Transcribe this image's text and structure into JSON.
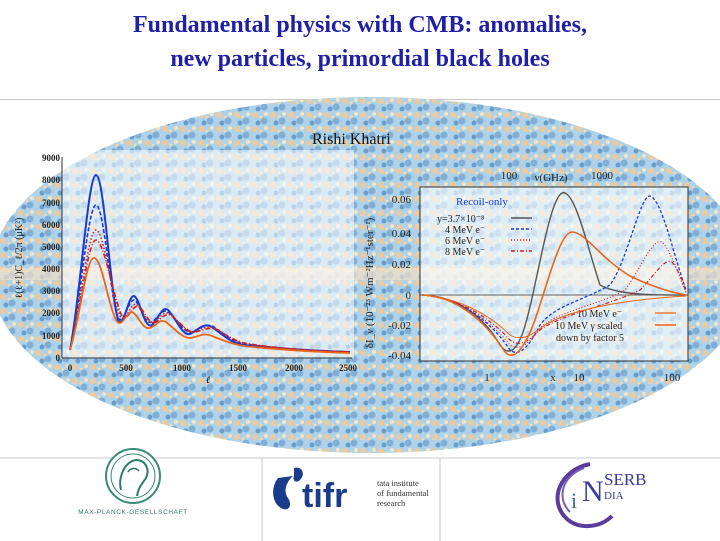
{
  "slide": {
    "title_line1": "Fundamental physics with CMB: anomalies,",
    "title_line2": "new particles, primordial black holes",
    "author": "Rishi Khatri"
  },
  "colors": {
    "title": "#1f1fa8",
    "curve_black": "#555555",
    "curve_blue": "#1a3ad1",
    "curve_orange": "#e8651c",
    "curve_red": "#cc2222",
    "map_blue": "#5ba3d0",
    "map_orange": "#e0b070"
  },
  "left_plot": {
    "ylabel": "ℓ(ℓ+1)C_ℓ/2π (μK²)",
    "xlabel": "ℓ",
    "y_ticks": [
      "9000",
      "8000",
      "7000",
      "6000",
      "5000",
      "4000",
      "3000",
      "2000",
      "1000",
      "0"
    ],
    "x_ticks": [
      "0",
      "500",
      "1000",
      "1500",
      "2000",
      "2500"
    ]
  },
  "right_plot": {
    "top_axis_label": "ν(GHz)",
    "top_ticks": [
      "100",
      "1000"
    ],
    "y_ticks": [
      "0.06",
      "0.04",
      "0.02",
      "0",
      "-0.02",
      "-0.04"
    ],
    "ylabel": "δI_ν (10⁻²³ Wm⁻²Hz⁻¹ster⁻¹)",
    "x_ticks": [
      "1",
      "10",
      "100"
    ],
    "xlabel": "x",
    "legend_title": "Recoil-only",
    "legend1": [
      "y=3.7×10⁻⁸",
      "4 MeV e⁻",
      "6 MeV e⁻",
      "8 MeV e⁻"
    ],
    "legend2": [
      "10 MeV e⁻",
      "10 MeV γ scaled",
      "down by factor 5"
    ]
  },
  "logos": {
    "mpg": "MAX-PLANCK-GESELLSCHAFT",
    "tifr_word": "tifr",
    "tifr_line1": "tata institute",
    "tifr_line2": "of fundamental",
    "tifr_line3": "research",
    "serb_i": "i",
    "serb_n": "N",
    "serb": "SERB",
    "dia": "DIA"
  }
}
